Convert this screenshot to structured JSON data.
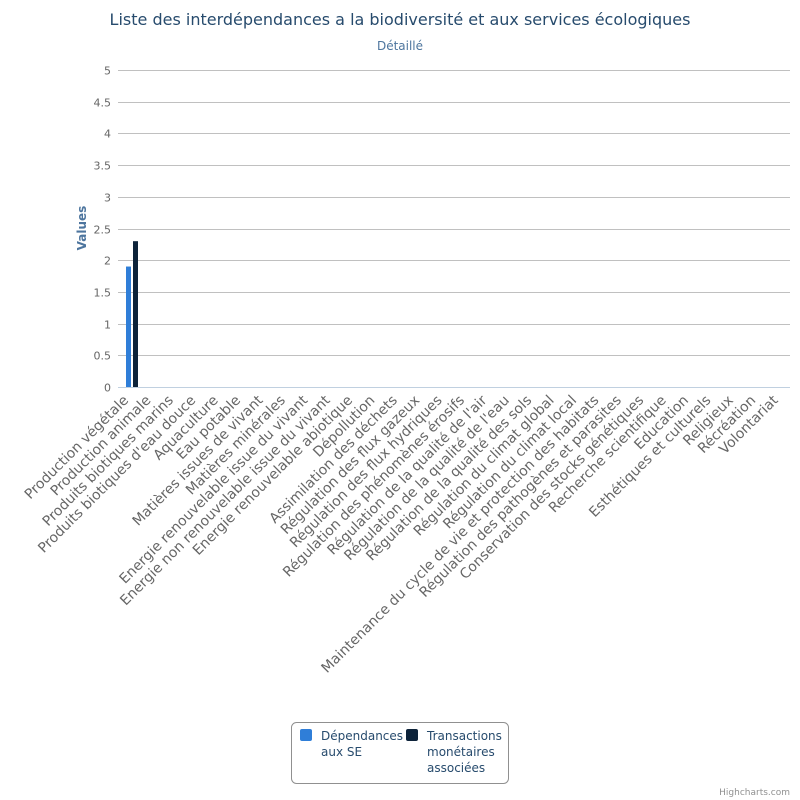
{
  "chart_data": {
    "type": "bar",
    "title": "Liste des interdépendances a la biodiversité et aux services écologiques",
    "subtitle": "Détaillé",
    "xlabel": "",
    "ylabel": "Values",
    "ylim": [
      0,
      5
    ],
    "yticks": [
      "0",
      "0.5",
      "1",
      "1.5",
      "2",
      "2.5",
      "3",
      "3.5",
      "4",
      "4.5",
      "5"
    ],
    "grid": true,
    "legend_position": "bottom-center",
    "categories": [
      "Production végétale",
      "Production animale",
      "Produits biotiques marins",
      "Produits biotiques d'eau douce",
      "Aquaculture",
      "Eau potable",
      "Matières issues de vivant",
      "Matières minérales",
      "Energie renouvelable issue du vivant",
      "Energie non renouvelable issue du vivant",
      "Energie renouvelable abiotique",
      "Dépollution",
      "Assimilation des déchets",
      "Régulation des flux gazeux",
      "Régulation des flux hydriques",
      "Régulation des phénomènes érosifs",
      "Régulation de la qualité de l'air",
      "Régulation de la qualité de l'eau",
      "Régulation de la qualité des sols",
      "Régulation du climat global",
      "Régulation du climat local",
      "Maintenance du cycle de vie et protection des habitats",
      "Régulation des pathogènes et parasites",
      "Conservation des stocks génétiques",
      "Recherche scientifique",
      "Education",
      "Esthétiques et culturels",
      "Religieux",
      "Récréation",
      "Volontariat"
    ],
    "series": [
      {
        "name": "Dépendances aux SE",
        "legend_lines": [
          "Dépendances",
          "aux SE"
        ],
        "color": "#2f7ed8",
        "values": [
          1.9,
          0,
          0,
          0,
          0,
          0,
          0,
          0,
          0,
          0,
          0,
          0,
          0,
          0,
          0,
          0,
          0,
          0,
          0,
          0,
          0,
          0,
          0,
          0,
          0,
          0,
          0,
          0,
          0,
          0
        ]
      },
      {
        "name": "Transactions monétaires associées",
        "legend_lines": [
          "Transactions",
          "monétaires",
          "associées"
        ],
        "color": "#0d233a",
        "values": [
          2.3,
          0,
          0,
          0,
          0,
          0,
          0,
          0,
          0,
          0,
          0,
          0,
          0,
          0,
          0,
          0,
          0,
          0,
          0,
          0,
          0,
          0,
          0,
          0,
          0,
          0,
          0,
          0,
          0,
          0
        ]
      }
    ],
    "credits": "Highcharts.com"
  }
}
